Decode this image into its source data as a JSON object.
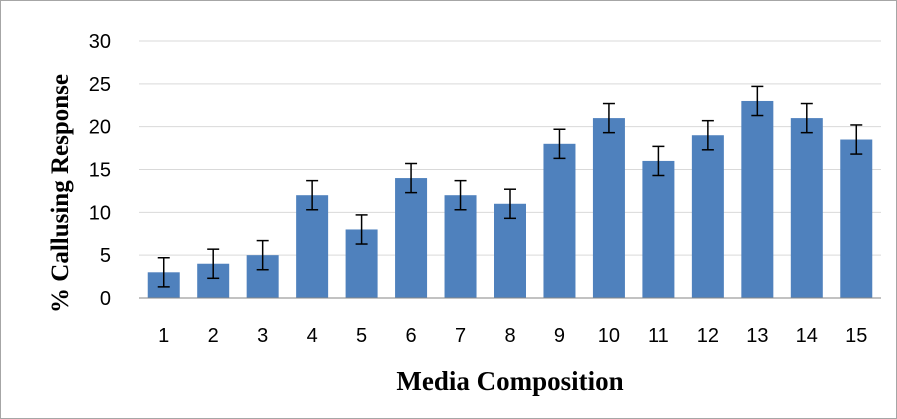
{
  "chart_data": {
    "type": "bar",
    "categories": [
      "1",
      "2",
      "3",
      "4",
      "5",
      "6",
      "7",
      "8",
      "9",
      "10",
      "11",
      "12",
      "13",
      "14",
      "15"
    ],
    "values": [
      3,
      4,
      5,
      12,
      8,
      14,
      12,
      11,
      18,
      21,
      16,
      19,
      23,
      21,
      18.5
    ],
    "error": [
      1.7,
      1.7,
      1.7,
      1.7,
      1.7,
      1.7,
      1.7,
      1.7,
      1.7,
      1.7,
      1.7,
      1.7,
      1.7,
      1.7,
      1.7
    ],
    "title": "",
    "xlabel": "Media Composition",
    "ylabel": "% Callusing Response",
    "ylim": [
      0,
      30
    ],
    "yticks": [
      "0",
      "5",
      "10",
      "15",
      "20",
      "25",
      "30"
    ],
    "grid": true,
    "legend": "none",
    "colors": {
      "bar": "#4f81bd",
      "grid": "#d9d9d9",
      "axis": "#868686",
      "error": "#000000"
    }
  }
}
